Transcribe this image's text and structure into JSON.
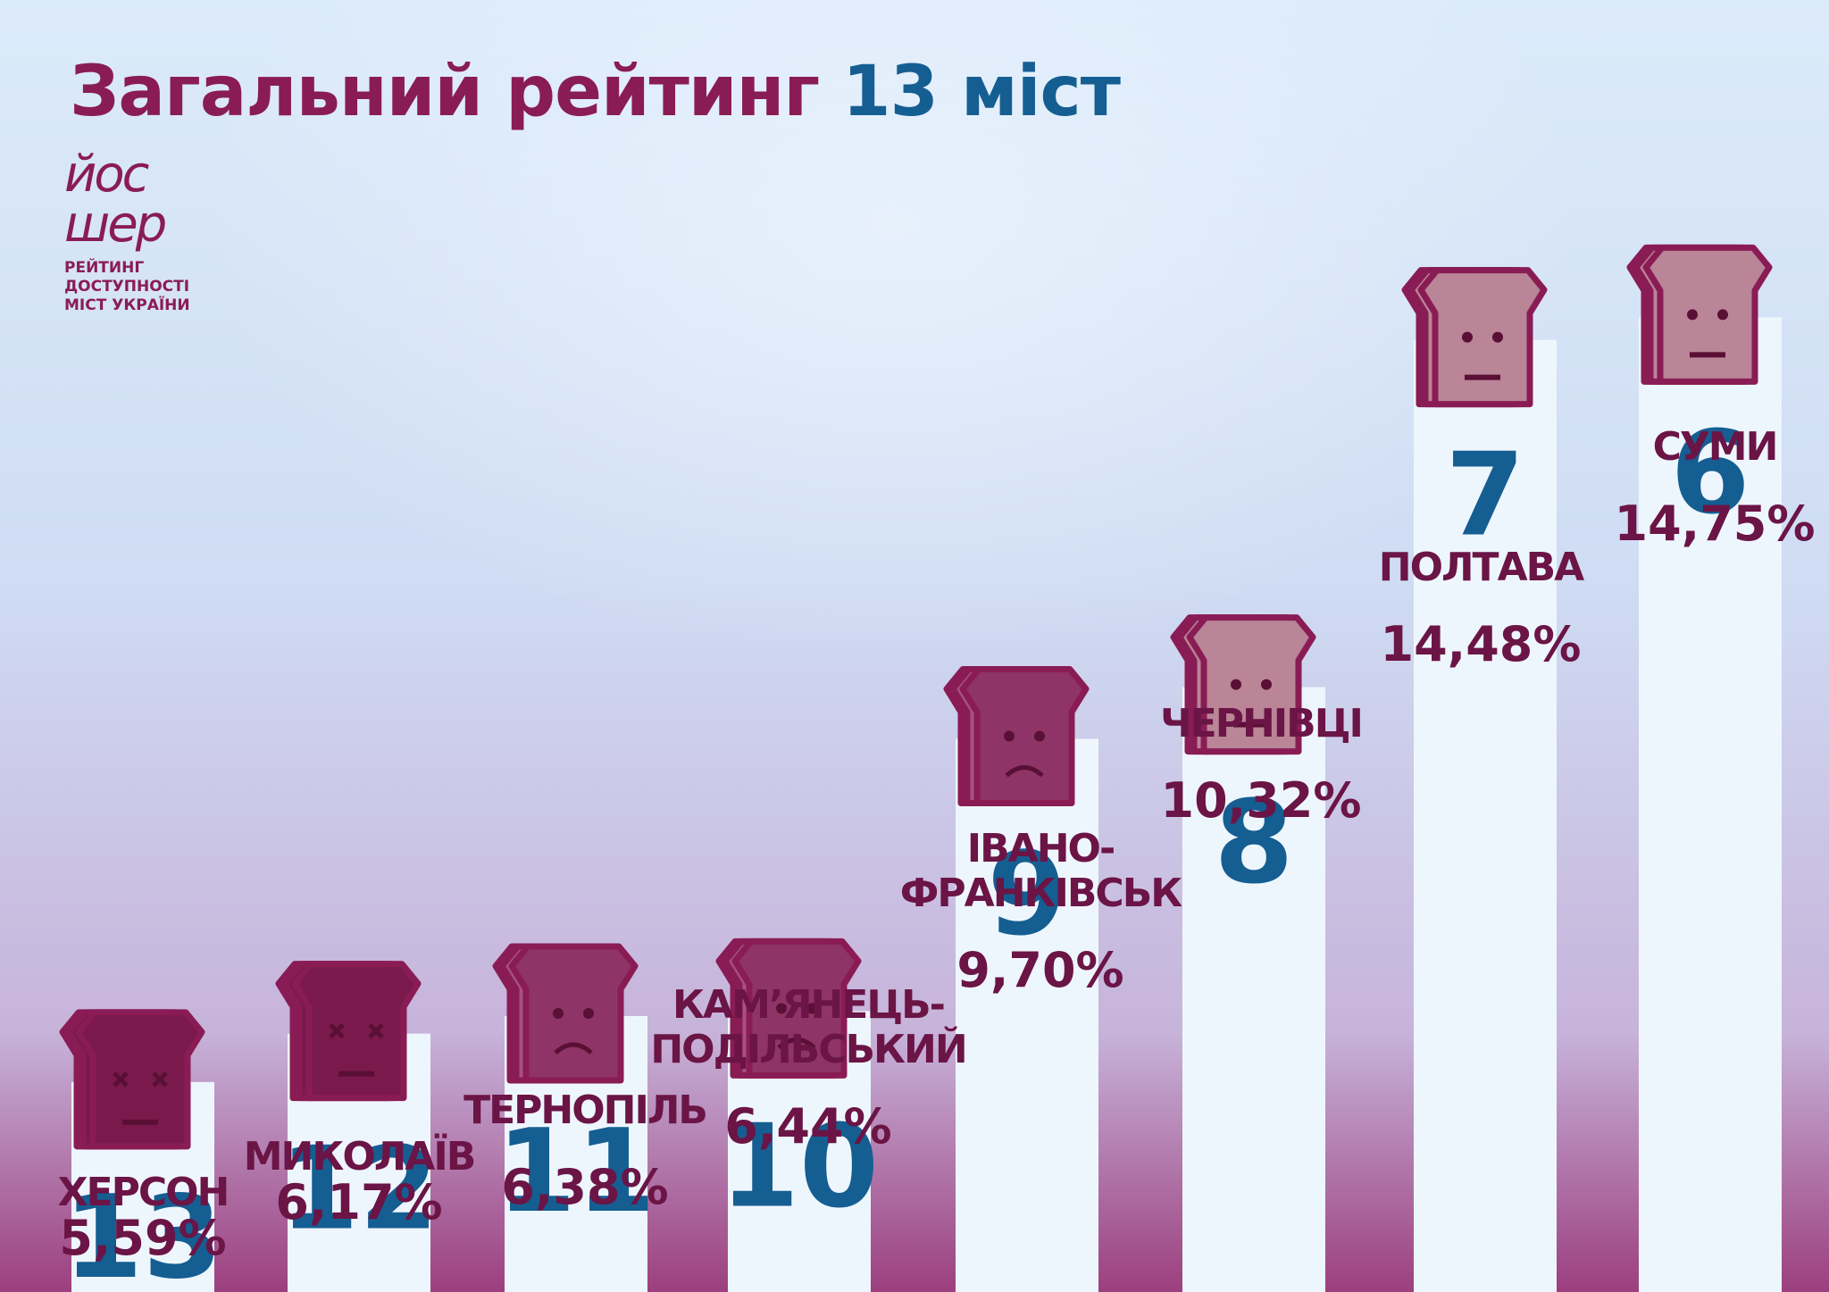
{
  "title": {
    "prefix": "Загальний рейтинг",
    "number": "13 міст"
  },
  "logo": {
    "word_line1": "йос",
    "word_line2": "шер",
    "subtitle": "РЕЙТИНГ\nДОСТУПНОСТІ\nМІСТ УКРАЇНИ"
  },
  "colors": {
    "title": "#8a1c55",
    "rank": "#155e92",
    "label": "#6b1446",
    "column": "#eef6fd",
    "face_dark": "#7a1a4c",
    "face_mid": "#8e3466",
    "face_light": "#a5527e",
    "face_lightest": "#b98597",
    "outline": "#8a1c55"
  },
  "chart_data": {
    "type": "bar",
    "categories": [
      "ХЕРСОН",
      "МИКОЛАЇВ",
      "ТЕРНОПІЛЬ",
      "КАМ’ЯНЕЦЬ-ПОДІЛЬСЬКИЙ",
      "ІВАНО-ФРАНКІВСЬК",
      "ЧЕРНІВЦІ",
      "ПОЛТАВА",
      "СУМИ"
    ],
    "category_lines": [
      [
        "ХЕРСОН"
      ],
      [
        "МИКОЛАЇВ"
      ],
      [
        "ТЕРНОПІЛЬ"
      ],
      [
        "КАМ’ЯНЕЦЬ-",
        "ПОДІЛЬСЬКИЙ"
      ],
      [
        "ІВАНО-",
        "ФРАНКІВСЬК"
      ],
      [
        "ЧЕРНІВЦІ"
      ],
      [
        "ПОЛТАВА"
      ],
      [
        "СУМИ"
      ]
    ],
    "ranks": [
      "13",
      "12",
      "11",
      "10",
      "9",
      "8",
      "7",
      "6"
    ],
    "values": [
      5.59,
      6.17,
      6.38,
      6.44,
      9.7,
      10.32,
      14.48,
      14.75
    ],
    "value_labels": [
      "5,59%",
      "6,17%",
      "6,38%",
      "6,44%",
      "9,70%",
      "10,32%",
      "14,48%",
      "14,75%"
    ],
    "faces": [
      "dead",
      "dead",
      "sad",
      "sad",
      "sad",
      "neutral",
      "neutral",
      "neutral"
    ]
  }
}
